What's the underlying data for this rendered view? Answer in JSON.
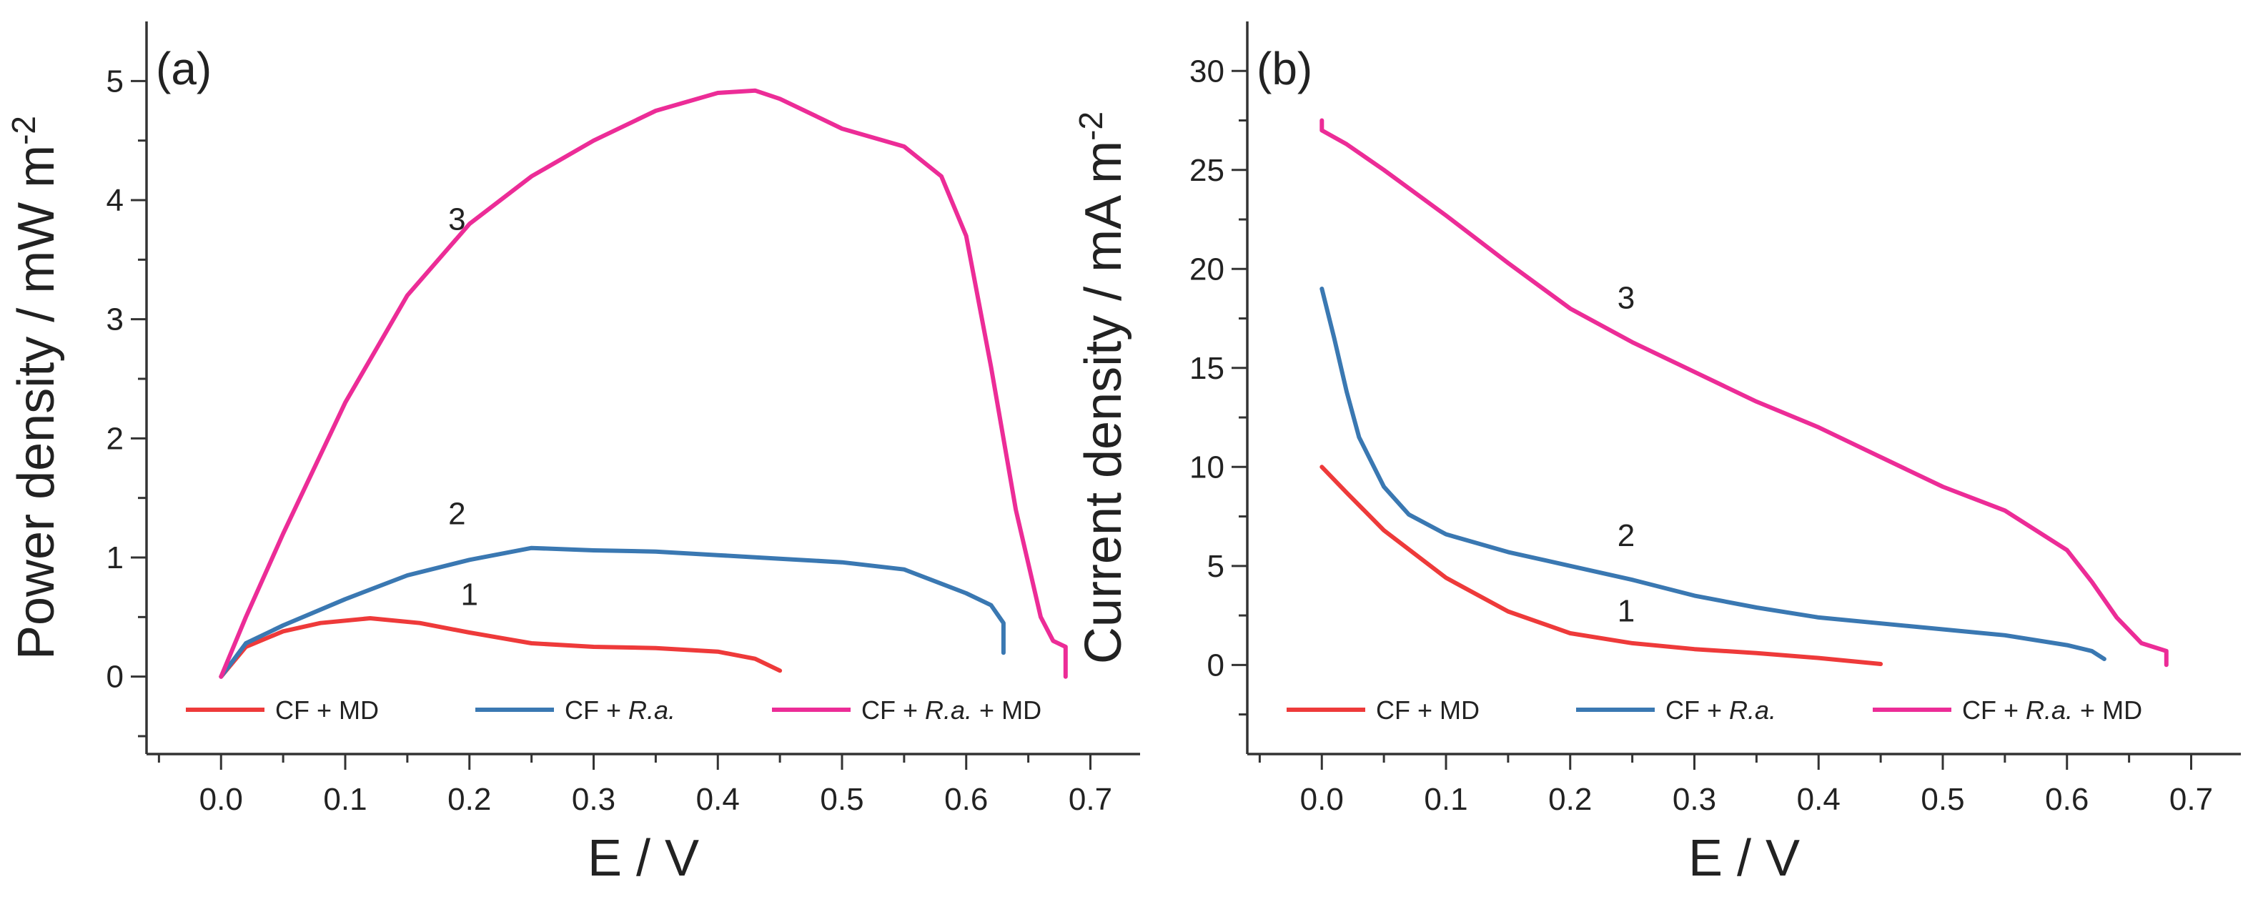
{
  "chart_data": [
    {
      "panel": "(a)",
      "type": "line",
      "xlabel": "E / V",
      "ylabel": "Power density / mW m",
      "ylabel_superscript": "-2",
      "xlim": [
        -0.06,
        0.74
      ],
      "ylim": [
        -0.65,
        5.5
      ],
      "xticks": [
        0.0,
        0.1,
        0.2,
        0.3,
        0.4,
        0.5,
        0.6,
        0.7
      ],
      "xtick_labels": [
        "0.0",
        "0.1",
        "0.2",
        "0.3",
        "0.4",
        "0.5",
        "0.6",
        "0.7"
      ],
      "yticks": [
        0,
        1,
        2,
        3,
        4,
        5
      ],
      "ytick_labels": [
        "0",
        "1",
        "2",
        "3",
        "4",
        "5"
      ],
      "legend_position": "bottom",
      "series": [
        {
          "name": "CF + MD",
          "name_parts": [
            "CF + MD"
          ],
          "curve_label": "1",
          "color": "#ee3a3a",
          "x": [
            0.0,
            0.02,
            0.05,
            0.08,
            0.12,
            0.16,
            0.2,
            0.25,
            0.3,
            0.35,
            0.4,
            0.43,
            0.45
          ],
          "y": [
            0.0,
            0.25,
            0.38,
            0.45,
            0.49,
            0.45,
            0.37,
            0.28,
            0.25,
            0.24,
            0.21,
            0.15,
            0.05
          ]
        },
        {
          "name": "CF + R.a.",
          "name_parts": [
            "CF + ",
            "R.a."
          ],
          "curve_label": "2",
          "color": "#3a78b2",
          "x": [
            0.0,
            0.02,
            0.05,
            0.1,
            0.15,
            0.2,
            0.25,
            0.3,
            0.35,
            0.4,
            0.45,
            0.5,
            0.55,
            0.58,
            0.6,
            0.62,
            0.63,
            0.63
          ],
          "y": [
            0.0,
            0.28,
            0.43,
            0.65,
            0.85,
            0.98,
            1.08,
            1.06,
            1.05,
            1.02,
            0.99,
            0.96,
            0.9,
            0.78,
            0.7,
            0.6,
            0.45,
            0.2
          ]
        },
        {
          "name": "CF + R.a. + MD",
          "name_parts": [
            "CF + ",
            "R.a.",
            " + MD"
          ],
          "curve_label": "3",
          "color": "#ec2c97",
          "x": [
            0.0,
            0.02,
            0.05,
            0.1,
            0.15,
            0.2,
            0.25,
            0.3,
            0.35,
            0.4,
            0.43,
            0.45,
            0.48,
            0.5,
            0.55,
            0.58,
            0.6,
            0.62,
            0.64,
            0.66,
            0.67,
            0.68,
            0.68
          ],
          "y": [
            0.0,
            0.5,
            1.2,
            2.3,
            3.2,
            3.8,
            4.2,
            4.5,
            4.75,
            4.9,
            4.92,
            4.85,
            4.7,
            4.6,
            4.45,
            4.2,
            3.7,
            2.6,
            1.4,
            0.5,
            0.3,
            0.25,
            0.0
          ]
        }
      ],
      "curve_label_positions": [
        {
          "label": "1",
          "x": 0.2,
          "y": 0.6
        },
        {
          "label": "2",
          "x": 0.19,
          "y": 1.28
        },
        {
          "label": "3",
          "x": 0.19,
          "y": 3.75
        }
      ]
    },
    {
      "panel": "(b)",
      "type": "line",
      "xlabel": "E / V",
      "ylabel": "Current density / mA m",
      "ylabel_superscript": "-2",
      "xlim": [
        -0.06,
        0.74
      ],
      "ylim": [
        -4.5,
        32.5
      ],
      "xticks": [
        0.0,
        0.1,
        0.2,
        0.3,
        0.4,
        0.5,
        0.6,
        0.7
      ],
      "xtick_labels": [
        "0.0",
        "0.1",
        "0.2",
        "0.3",
        "0.4",
        "0.5",
        "0.6",
        "0.7"
      ],
      "yticks": [
        0,
        5,
        10,
        15,
        20,
        25,
        30
      ],
      "ytick_labels": [
        "0",
        "5",
        "10",
        "15",
        "20",
        "25",
        "30"
      ],
      "legend_position": "bottom",
      "series": [
        {
          "name": "CF + MD",
          "name_parts": [
            "CF + MD"
          ],
          "curve_label": "1",
          "color": "#ee3a3a",
          "x": [
            0.0,
            0.02,
            0.05,
            0.1,
            0.15,
            0.2,
            0.25,
            0.3,
            0.35,
            0.4,
            0.45
          ],
          "y": [
            10.0,
            8.7,
            6.8,
            4.4,
            2.7,
            1.6,
            1.1,
            0.8,
            0.6,
            0.35,
            0.05
          ]
        },
        {
          "name": "CF + R.a.",
          "name_parts": [
            "CF + ",
            "R.a."
          ],
          "curve_label": "2",
          "color": "#3a78b2",
          "x": [
            0.0,
            0.01,
            0.02,
            0.03,
            0.05,
            0.07,
            0.1,
            0.15,
            0.2,
            0.25,
            0.3,
            0.35,
            0.4,
            0.45,
            0.5,
            0.55,
            0.6,
            0.62,
            0.63
          ],
          "y": [
            19.0,
            16.5,
            13.8,
            11.5,
            9.0,
            7.6,
            6.6,
            5.7,
            5.0,
            4.3,
            3.5,
            2.9,
            2.4,
            2.1,
            1.8,
            1.5,
            1.0,
            0.7,
            0.3
          ]
        },
        {
          "name": "CF + R.a. + MD",
          "name_parts": [
            "CF + ",
            "R.a.",
            " + MD"
          ],
          "curve_label": "3",
          "color": "#ec2c97",
          "x": [
            0.0,
            0.0,
            0.02,
            0.05,
            0.1,
            0.15,
            0.2,
            0.25,
            0.3,
            0.35,
            0.4,
            0.45,
            0.5,
            0.55,
            0.6,
            0.62,
            0.64,
            0.66,
            0.68,
            0.68
          ],
          "y": [
            27.5,
            27.0,
            26.3,
            25.0,
            22.7,
            20.3,
            18.0,
            16.3,
            14.8,
            13.3,
            12.0,
            10.5,
            9.0,
            7.8,
            5.8,
            4.2,
            2.4,
            1.1,
            0.7,
            0.0
          ]
        }
      ],
      "curve_label_positions": [
        {
          "label": "1",
          "x": 0.245,
          "y": 2.2
        },
        {
          "label": "2",
          "x": 0.245,
          "y": 6.0
        },
        {
          "label": "3",
          "x": 0.245,
          "y": 18.0
        }
      ]
    }
  ]
}
